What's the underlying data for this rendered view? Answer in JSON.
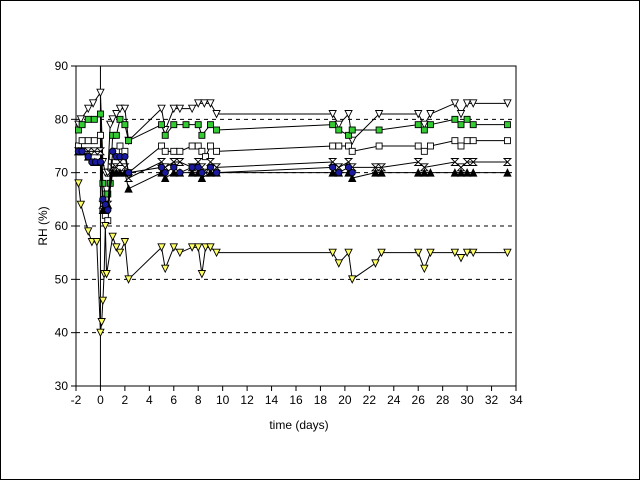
{
  "chart_data": {
    "type": "line",
    "title": "",
    "xlabel": "time (days)",
    "ylabel": "RH (%)",
    "xlim": [
      -2,
      34
    ],
    "ylim": [
      30,
      90
    ],
    "xticks": [
      -2,
      0,
      2,
      4,
      6,
      8,
      10,
      12,
      14,
      16,
      18,
      20,
      22,
      24,
      26,
      28,
      30,
      32,
      34
    ],
    "yticks": [
      30,
      40,
      50,
      60,
      70,
      80,
      90
    ],
    "dashed_reference_lines": [
      40,
      50,
      60,
      70,
      80
    ],
    "vertical_reference_x": 0,
    "series": [
      {
        "marker": "triangle-down",
        "fill": "#ffffff",
        "color": "#000000",
        "x": [
          -1.8,
          -1.6,
          -1.0,
          -0.6,
          0.0,
          0.2,
          0.4,
          0.6,
          0.8,
          1.0,
          1.3,
          1.6,
          2.0,
          2.3,
          5.0,
          5.3,
          6.0,
          6.5,
          7.5,
          8.0,
          8.5,
          9.0,
          9.5,
          19.0,
          19.5,
          20.3,
          20.6,
          22.8,
          26.0,
          26.5,
          27.0,
          29.0,
          29.5,
          30.0,
          30.5,
          33.3
        ],
        "y": [
          79,
          80,
          82,
          83,
          85,
          72,
          70,
          70,
          79,
          80,
          81,
          82,
          82,
          76,
          82,
          78,
          82,
          82,
          82,
          83,
          83,
          83,
          81,
          81,
          79,
          81,
          76,
          81,
          81,
          79,
          81,
          83,
          81,
          83,
          83,
          83
        ]
      },
      {
        "marker": "square",
        "fill": "#33cc33",
        "color": "#000000",
        "x": [
          -1.8,
          -1.5,
          -1.0,
          -0.5,
          0.0,
          0.2,
          0.4,
          0.6,
          0.8,
          1.0,
          1.3,
          1.6,
          2.0,
          2.3,
          5.0,
          5.3,
          6.0,
          7.0,
          8.0,
          8.3,
          9.0,
          9.5,
          19.0,
          19.5,
          20.3,
          20.6,
          22.8,
          26.0,
          26.5,
          27.0,
          29.0,
          29.5,
          30.0,
          30.5,
          33.3
        ],
        "y": [
          78,
          79,
          80,
          80,
          81,
          68,
          66,
          66,
          68,
          77,
          77,
          80,
          79,
          76,
          79,
          77,
          79,
          79,
          79,
          77,
          79,
          78,
          79,
          78,
          77,
          78,
          78,
          79,
          78,
          79,
          80,
          79,
          80,
          79,
          79
        ]
      },
      {
        "marker": "square",
        "fill": "#ffffff",
        "color": "#000000",
        "x": [
          -1.8,
          -1.5,
          -1.0,
          -0.5,
          0.0,
          0.2,
          0.4,
          0.6,
          1.0,
          1.3,
          1.6,
          2.0,
          2.3,
          5.0,
          5.3,
          6.0,
          6.5,
          7.5,
          8.0,
          8.3,
          8.6,
          9.0,
          9.5,
          19.0,
          19.5,
          20.3,
          20.6,
          22.8,
          26.0,
          26.5,
          27.0,
          29.0,
          29.5,
          30.0,
          30.5,
          33.3
        ],
        "y": [
          75,
          76,
          76,
          76,
          77,
          63,
          62,
          61,
          73,
          74,
          75,
          74,
          70,
          75,
          74,
          74,
          74,
          75,
          75,
          74,
          73,
          75,
          74,
          75,
          75,
          75,
          74,
          75,
          75,
          74,
          75,
          76,
          75,
          76,
          76,
          76
        ]
      },
      {
        "marker": "hourglass",
        "fill": "#ffffff",
        "color": "#000000",
        "x": [
          -1.8,
          -1.5,
          -1.0,
          -0.5,
          0.0,
          0.2,
          0.4,
          0.6,
          0.8,
          1.0,
          1.3,
          1.6,
          2.0,
          2.3,
          5.0,
          5.3,
          6.0,
          6.5,
          7.5,
          8.0,
          8.3,
          8.6,
          9.0,
          9.5,
          19.0,
          19.5,
          20.3,
          20.6,
          22.5,
          23.0,
          26.0,
          26.5,
          29.0,
          29.5,
          30.0,
          30.5,
          33.3
        ],
        "y": [
          74,
          74,
          74,
          74,
          74,
          64,
          63,
          64,
          70,
          71,
          71,
          72,
          71,
          69,
          72,
          71,
          72,
          72,
          71,
          72,
          71,
          70,
          72,
          71,
          72,
          71,
          72,
          71,
          71,
          71,
          72,
          71,
          72,
          71,
          72,
          72,
          72
        ]
      },
      {
        "marker": "triangle-up",
        "fill": "#000000",
        "color": "#000000",
        "x": [
          -1.8,
          -1.5,
          -1.0,
          -0.5,
          0.0,
          0.2,
          0.4,
          0.6,
          1.0,
          1.3,
          1.6,
          2.0,
          2.3,
          5.0,
          5.3,
          6.0,
          6.5,
          7.5,
          8.0,
          8.3,
          9.0,
          9.5,
          19.0,
          19.5,
          20.3,
          20.6,
          22.5,
          23.0,
          26.0,
          26.5,
          27.0,
          29.0,
          29.5,
          30.0,
          30.5,
          33.3
        ],
        "y": [
          74,
          74,
          73,
          72,
          72,
          63,
          63,
          64,
          70,
          70,
          70,
          70,
          67,
          70,
          69,
          70,
          70,
          70,
          70,
          69,
          70,
          70,
          70,
          70,
          70,
          69,
          70,
          70,
          70,
          70,
          70,
          70,
          70,
          70,
          70,
          70
        ]
      },
      {
        "marker": "circle",
        "fill": "#1a1aa0",
        "color": "#000000",
        "x": [
          -1.8,
          -1.5,
          -1.0,
          -0.7,
          -0.4,
          0.0,
          0.2,
          0.4,
          0.6,
          1.0,
          1.3,
          1.6,
          2.0,
          2.3,
          5.0,
          5.3,
          6.0,
          6.5,
          7.5,
          8.0,
          8.3,
          9.0,
          9.5,
          19.0,
          19.5,
          20.3,
          20.6
        ],
        "y": [
          74,
          74,
          73,
          72,
          72,
          72,
          65,
          64,
          63,
          74,
          73,
          73,
          73,
          70,
          71,
          70,
          71,
          70,
          71,
          71,
          70,
          71,
          70,
          71,
          70,
          71,
          70
        ]
      },
      {
        "marker": "triangle-down",
        "fill": "#ffff66",
        "color": "#000000",
        "x": [
          -1.8,
          -1.6,
          -1.0,
          -0.7,
          -0.3,
          0.0,
          0.1,
          0.2,
          0.3,
          0.4,
          0.5,
          1.0,
          1.3,
          1.6,
          2.0,
          2.3,
          5.0,
          5.3,
          6.0,
          6.5,
          7.5,
          8.0,
          8.3,
          8.6,
          9.0,
          9.5,
          19.0,
          19.5,
          20.3,
          20.6,
          22.5,
          23.0,
          26.0,
          26.5,
          27.0,
          29.0,
          29.5,
          30.0,
          30.5,
          33.3
        ],
        "y": [
          68,
          64,
          59,
          57,
          57,
          40,
          42,
          46,
          51,
          60,
          51,
          58,
          56,
          55,
          57,
          50,
          56,
          52,
          56,
          55,
          56,
          56,
          51,
          56,
          56,
          55,
          55,
          53,
          55,
          50,
          53,
          55,
          55,
          52,
          55,
          55,
          54,
          55,
          55,
          55
        ]
      }
    ]
  }
}
